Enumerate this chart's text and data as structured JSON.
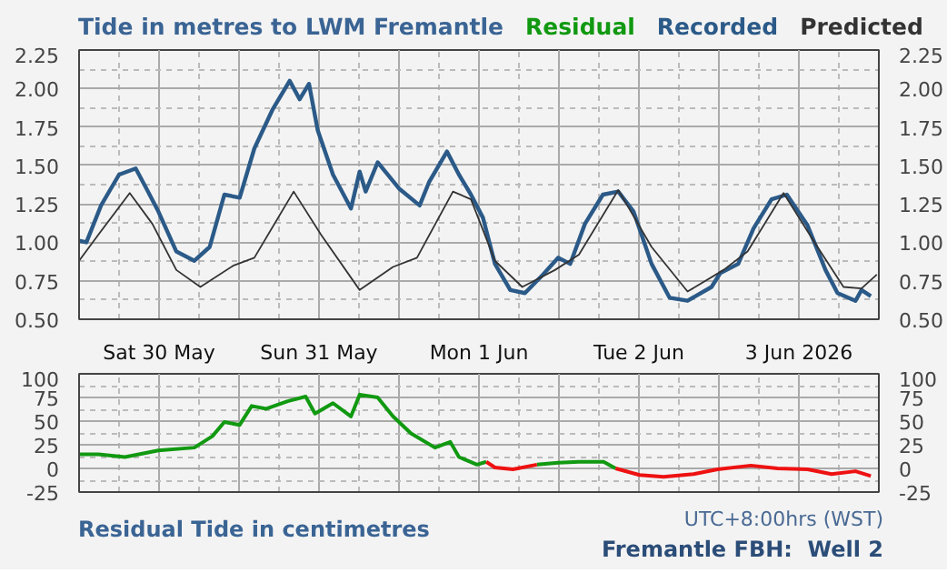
{
  "chart_data": [
    {
      "type": "line",
      "title": "Tide in metres to LWM Fremantle",
      "grid": true,
      "xlim": [
        "2026-05-30T00:00",
        "2026-06-04T00:00"
      ],
      "xticks": [
        {
          "value": "2026-05-30T00:00",
          "label": null
        },
        {
          "value": "2026-05-30T12:00",
          "label": "Sat 30 May"
        },
        {
          "value": "2026-05-31T00:00",
          "label": null
        },
        {
          "value": "2026-05-31T12:00",
          "label": "Sun 31 May"
        },
        {
          "value": "2026-06-01T00:00",
          "label": null
        },
        {
          "value": "2026-06-01T12:00",
          "label": "Mon 1 Jun"
        },
        {
          "value": "2026-06-02T00:00",
          "label": null
        },
        {
          "value": "2026-06-02T12:00",
          "label": "Tue 2 Jun"
        },
        {
          "value": "2026-06-03T00:00",
          "label": null
        },
        {
          "value": "2026-06-03T12:00",
          "label": "3 Jun 2026"
        },
        {
          "value": "2026-06-04T00:00",
          "label": null
        }
      ],
      "ylim": [
        0.5,
        2.25
      ],
      "yticks": [
        {
          "value": 0.5,
          "label": "0.50"
        },
        {
          "value": 0.75,
          "label": "0.75"
        },
        {
          "value": 1.0,
          "label": "1.00"
        },
        {
          "value": 1.25,
          "label": "1.25"
        },
        {
          "value": 1.5,
          "label": "1.50"
        },
        {
          "value": 1.75,
          "label": "1.75"
        },
        {
          "value": 2.0,
          "label": "2.00"
        },
        {
          "value": 2.25,
          "label": "2.25"
        }
      ],
      "y2lim": [
        0.5,
        2.25
      ],
      "y2ticks": [
        {
          "value": 0.5,
          "label": "0.50"
        },
        {
          "value": 0.75,
          "label": "0.75"
        },
        {
          "value": 1.0,
          "label": "1.00"
        },
        {
          "value": 1.25,
          "label": "1.25"
        },
        {
          "value": 1.5,
          "label": "1.50"
        },
        {
          "value": 1.75,
          "label": "1.75"
        },
        {
          "value": 2.0,
          "label": "2.00"
        },
        {
          "value": 2.25,
          "label": "2.25"
        }
      ],
      "series": [
        {
          "name": "Recorded",
          "color": "#2b5a88",
          "x": [
            "2026-05-30T00:00",
            "2026-05-30T01:06",
            "2026-05-30T03:18",
            "2026-05-30T06:00",
            "2026-05-30T08:30",
            "2026-05-30T10:06",
            "2026-05-30T11:54",
            "2026-05-30T14:36",
            "2026-05-30T17:18",
            "2026-05-30T19:36",
            "2026-05-30T21:48",
            "2026-05-31T00:06",
            "2026-05-31T02:18",
            "2026-05-31T05:00",
            "2026-05-31T07:36",
            "2026-05-31T09:06",
            "2026-05-31T10:30",
            "2026-05-31T11:48",
            "2026-05-31T14:06",
            "2026-05-31T16:48",
            "2026-05-31T18:06",
            "2026-05-31T19:00",
            "2026-05-31T20:48",
            "2026-06-01T00:00",
            "2026-06-01T03:06",
            "2026-06-01T04:30",
            "2026-06-01T07:12",
            "2026-06-01T09:00",
            "2026-06-01T10:48",
            "2026-06-01T12:36",
            "2026-06-01T14:24",
            "2026-06-01T16:42",
            "2026-06-01T18:54",
            "2026-06-01T21:36",
            "2026-06-01T23:54",
            "2026-06-02T01:42",
            "2026-06-02T03:54",
            "2026-06-02T06:36",
            "2026-06-02T08:54",
            "2026-06-02T11:12",
            "2026-06-02T13:54",
            "2026-06-02T16:36",
            "2026-06-02T19:18",
            "2026-06-02T22:54",
            "2026-06-03T00:12",
            "2026-06-03T02:54",
            "2026-06-03T05:12",
            "2026-06-03T07:54",
            "2026-06-03T10:12",
            "2026-06-03T13:18",
            "2026-06-03T16:00",
            "2026-06-03T17:48",
            "2026-06-03T20:30",
            "2026-06-03T21:24",
            "2026-06-03T22:48"
          ],
          "values": [
            1.01,
            1.0,
            1.24,
            1.44,
            1.48,
            1.35,
            1.2,
            0.94,
            0.88,
            0.97,
            1.31,
            1.29,
            1.61,
            1.86,
            2.05,
            1.93,
            2.03,
            1.73,
            1.44,
            1.22,
            1.46,
            1.33,
            1.52,
            1.35,
            1.24,
            1.39,
            1.59,
            1.44,
            1.31,
            1.16,
            0.86,
            0.69,
            0.67,
            0.79,
            0.9,
            0.86,
            1.12,
            1.31,
            1.33,
            1.2,
            0.86,
            0.64,
            0.62,
            0.71,
            0.8,
            0.86,
            1.09,
            1.28,
            1.31,
            1.11,
            0.82,
            0.67,
            0.62,
            0.69,
            0.65
          ]
        },
        {
          "name": "Predicted",
          "color": "#333333",
          "x": [
            "2026-05-30T00:00",
            "2026-05-30T02:54",
            "2026-05-30T07:36",
            "2026-05-30T11:00",
            "2026-05-30T14:36",
            "2026-05-30T18:12",
            "2026-05-30T23:12",
            "2026-05-31T02:18",
            "2026-05-31T08:12",
            "2026-05-31T12:18",
            "2026-05-31T18:06",
            "2026-05-31T23:06",
            "2026-06-01T02:42",
            "2026-06-01T08:06",
            "2026-06-01T10:48",
            "2026-06-01T14:24",
            "2026-06-01T18:30",
            "2026-06-01T23:24",
            "2026-06-02T03:00",
            "2026-06-02T08:54",
            "2026-06-02T13:54",
            "2026-06-02T19:18",
            "2026-06-03T00:42",
            "2026-06-03T04:18",
            "2026-06-03T09:42",
            "2026-06-03T14:12",
            "2026-06-03T18:42",
            "2026-06-03T21:24",
            "2026-06-03T23:42"
          ],
          "values": [
            0.88,
            1.05,
            1.32,
            1.12,
            0.82,
            0.71,
            0.85,
            0.9,
            1.33,
            1.05,
            0.69,
            0.84,
            0.9,
            1.33,
            1.28,
            0.88,
            0.71,
            0.82,
            0.92,
            1.34,
            0.97,
            0.68,
            0.82,
            0.94,
            1.32,
            1.01,
            0.71,
            0.7,
            0.79
          ]
        }
      ]
    },
    {
      "type": "line",
      "title": "Residual Tide in centimetres",
      "grid": true,
      "tick_labels": "y",
      "annotations": [
        "UTC+8:00hrs (WST)",
        "Fremantle FBH:  Well 2"
      ],
      "xlim": [
        "2026-05-30T00:00",
        "2026-06-04T00:00"
      ],
      "xticks": [
        {
          "value": "2026-05-30T00:00",
          "label": null
        },
        {
          "value": "2026-05-30T12:00",
          "label": null
        },
        {
          "value": "2026-05-31T00:00",
          "label": null
        },
        {
          "value": "2026-05-31T12:00",
          "label": null
        },
        {
          "value": "2026-06-01T00:00",
          "label": null
        },
        {
          "value": "2026-06-01T12:00",
          "label": null
        },
        {
          "value": "2026-06-02T00:00",
          "label": null
        },
        {
          "value": "2026-06-02T12:00",
          "label": null
        },
        {
          "value": "2026-06-03T00:00",
          "label": null
        },
        {
          "value": "2026-06-03T12:00",
          "label": null
        },
        {
          "value": "2026-06-04T00:00",
          "label": null
        }
      ],
      "ylim": [
        -25,
        100
      ],
      "yticks": [
        -25,
        0,
        25,
        50,
        75,
        100
      ],
      "y2lim": [
        -25,
        100
      ],
      "y2ticks": [
        -25,
        0,
        25,
        50,
        75,
        100
      ],
      "x": [
        "2026-05-30T00:00",
        "2026-05-30T02:54",
        "2026-05-30T06:54",
        "2026-05-30T11:54",
        "2026-05-30T17:18",
        "2026-05-30T20:00",
        "2026-05-30T21:48",
        "2026-05-31T00:06",
        "2026-05-31T01:54",
        "2026-05-31T04:06",
        "2026-05-31T07:18",
        "2026-05-31T10:00",
        "2026-05-31T11:24",
        "2026-05-31T14:06",
        "2026-05-31T16:48",
        "2026-05-31T18:06",
        "2026-05-31T20:48",
        "2026-05-31T23:06",
        "2026-06-01T01:48",
        "2026-06-01T05:24",
        "2026-06-01T07:42",
        "2026-06-01T09:00",
        "2026-06-01T11:42",
        "2026-06-01T13:06",
        "2026-06-01T14:24",
        "2026-06-01T17:06",
        "2026-06-01T20:42",
        "2026-06-01T23:54",
        "2026-06-02T03:00",
        "2026-06-02T06:42",
        "2026-06-02T08:30",
        "2026-06-02T12:06",
        "2026-06-02T15:42",
        "2026-06-02T20:12",
        "2026-06-02T23:48",
        "2026-06-03T04:48",
        "2026-06-03T08:48",
        "2026-06-03T13:18",
        "2026-06-03T16:54",
        "2026-06-03T20:30",
        "2026-06-03T22:48"
      ],
      "series": [
        {
          "name": "Residual",
          "color": "#119911",
          "values": [
            15,
            15,
            12,
            19,
            22,
            34,
            49,
            46,
            66,
            63,
            71,
            76,
            58,
            69,
            55,
            78,
            75,
            55,
            37,
            22,
            28,
            12,
            4,
            7,
            null,
            null,
            4,
            6,
            7,
            7,
            0,
            null,
            null,
            null,
            null,
            null,
            null,
            null,
            null,
            null,
            null
          ]
        },
        {
          "color": "#ee1111",
          "values": [
            null,
            null,
            null,
            null,
            null,
            null,
            null,
            null,
            null,
            null,
            null,
            null,
            null,
            null,
            null,
            null,
            null,
            null,
            null,
            null,
            null,
            null,
            null,
            7,
            1,
            -1,
            4,
            null,
            null,
            null,
            0,
            -7,
            -9,
            -6,
            -1,
            3,
            0,
            -1,
            -6,
            -3,
            -8
          ]
        }
      ]
    }
  ]
}
